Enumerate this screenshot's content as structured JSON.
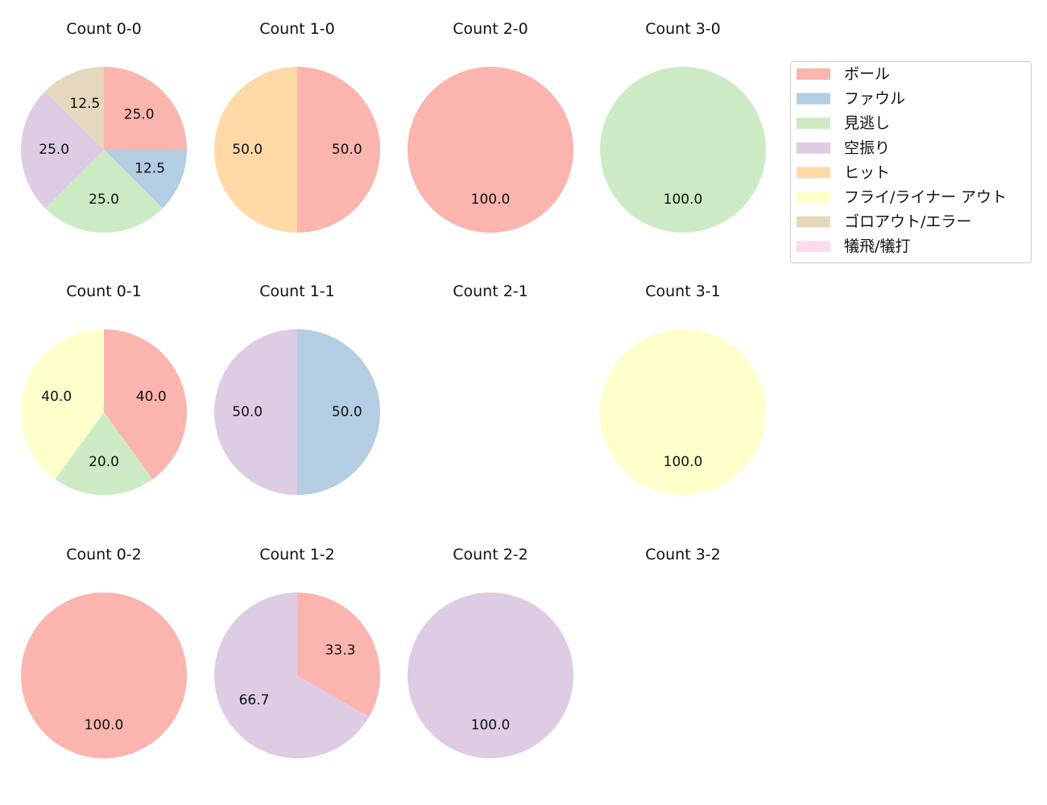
{
  "chart_data": {
    "type": "pie",
    "legend": {
      "placement": "top-right",
      "entries": [
        {
          "label": "ボール",
          "color": "#fbb4ae"
        },
        {
          "label": "ファウル",
          "color": "#b3cde3"
        },
        {
          "label": "見逃し",
          "color": "#ccebc5"
        },
        {
          "label": "空振り",
          "color": "#decbe4"
        },
        {
          "label": "ヒット",
          "color": "#fed9a6"
        },
        {
          "label": "フライ/ライナー アウト",
          "color": "#ffffcc"
        },
        {
          "label": "ゴロアウト/エラー",
          "color": "#e5d8bd"
        },
        {
          "label": "犠飛/犠打",
          "color": "#fddaec"
        }
      ]
    },
    "pies": [
      {
        "title": "Count 0-0",
        "values": [
          25.0,
          12.5,
          25.0,
          25.0,
          0,
          0,
          12.5,
          0
        ],
        "labels": [
          "25.0",
          "12.5",
          "25.0",
          "25.0",
          "",
          "",
          "12.5",
          ""
        ]
      },
      {
        "title": "Count 1-0",
        "values": [
          50.0,
          0,
          0,
          0,
          50.0,
          0,
          0,
          0
        ],
        "labels": [
          "50.0",
          "",
          "",
          "",
          "50.0",
          "",
          "",
          ""
        ]
      },
      {
        "title": "Count 2-0",
        "values": [
          100.0,
          0,
          0,
          0,
          0,
          0,
          0,
          0
        ],
        "labels": [
          "100.0",
          "",
          "",
          "",
          "",
          "",
          "",
          ""
        ]
      },
      {
        "title": "Count 3-0",
        "values": [
          0,
          0,
          100.0,
          0,
          0,
          0,
          0,
          0
        ],
        "labels": [
          "",
          "",
          "100.0",
          "",
          "",
          "",
          "",
          ""
        ]
      },
      {
        "title": "Count 0-1",
        "values": [
          40.0,
          0,
          20.0,
          0,
          0,
          40.0,
          0,
          0
        ],
        "labels": [
          "40.0",
          "",
          "20.0",
          "",
          "",
          "40.0",
          "",
          ""
        ]
      },
      {
        "title": "Count 1-1",
        "values": [
          0,
          50.0,
          0,
          50.0,
          0,
          0,
          0,
          0
        ],
        "labels": [
          "",
          "50.0",
          "",
          "50.0",
          "",
          "",
          "",
          ""
        ]
      },
      {
        "title": "Count 2-1",
        "values": [],
        "labels": []
      },
      {
        "title": "Count 3-1",
        "values": [
          0,
          0,
          0,
          0,
          0,
          100.0,
          0,
          0
        ],
        "labels": [
          "",
          "",
          "",
          "",
          "",
          "100.0",
          "",
          ""
        ]
      },
      {
        "title": "Count 0-2",
        "values": [
          100.0,
          0,
          0,
          0,
          0,
          0,
          0,
          0
        ],
        "labels": [
          "100.0",
          "",
          "",
          "",
          "",
          "",
          "",
          ""
        ]
      },
      {
        "title": "Count 1-2",
        "values": [
          33.3,
          0,
          0,
          66.7,
          0,
          0,
          0,
          0
        ],
        "labels": [
          "33.3",
          "",
          "",
          "66.7",
          "",
          "",
          "",
          ""
        ]
      },
      {
        "title": "Count 2-2",
        "values": [
          0,
          0,
          0,
          100.0,
          0,
          0,
          0,
          0
        ],
        "labels": [
          "",
          "",
          "",
          "100.0",
          "",
          "",
          "",
          ""
        ]
      },
      {
        "title": "Count 3-2",
        "values": [],
        "labels": []
      }
    ]
  }
}
